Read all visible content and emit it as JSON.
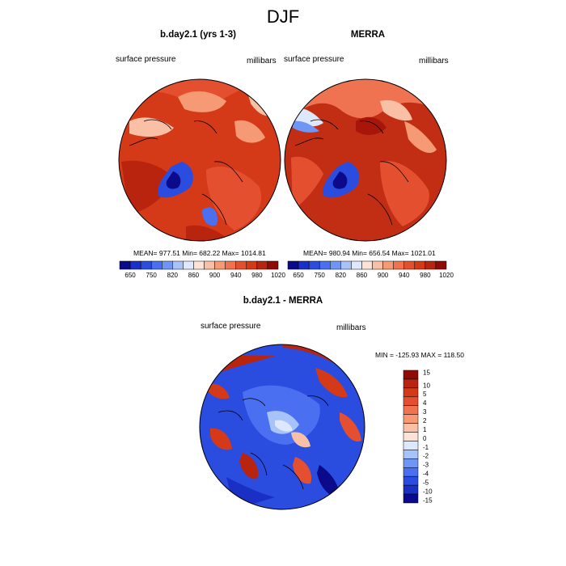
{
  "figure": {
    "title": "DJF"
  },
  "panels": [
    {
      "title": "b.day2.1 (yrs 1-3)",
      "left_label": "surface pressure",
      "right_label": "millibars",
      "stats": "MEAN= 977.51  Min= 682.22  Max= 1014.81",
      "fill_color": "#d43a18"
    },
    {
      "title": "MERRA",
      "left_label": "surface pressure",
      "right_label": "millibars",
      "stats": "MEAN= 980.94  Min= 656.54  Max= 1021.01",
      "fill_color": "#c22e14"
    },
    {
      "title": "b.day2.1 - MERRA",
      "left_label": "surface pressure",
      "right_label": "millibars",
      "stats": "MIN = -125.93 MAX = 118.50",
      "fill_color": "#2a4de0"
    }
  ],
  "colorbar_top": {
    "colors": [
      "#0a0a8a",
      "#1a2fc4",
      "#2a4de0",
      "#4a6ff0",
      "#7096f5",
      "#a8c2fa",
      "#dde8fd",
      "#fbe3d8",
      "#f9c0a6",
      "#f59a74",
      "#ef7350",
      "#e4502f",
      "#d43a18",
      "#b8240d",
      "#8f0c06"
    ],
    "labels": [
      "650",
      "750",
      "820",
      "860",
      "900",
      "940",
      "980",
      "1020"
    ]
  },
  "colorbar_diff": {
    "colors": [
      "#8f0c06",
      "#b8240d",
      "#d43a18",
      "#e4502f",
      "#ef7350",
      "#f59a74",
      "#f9c0a6",
      "#fbe3d8",
      "#dde8fd",
      "#a8c2fa",
      "#7096f5",
      "#4a6ff0",
      "#2a4de0",
      "#1a2fc4",
      "#0a0a8a"
    ],
    "labels": [
      "15",
      "10",
      "5",
      "4",
      "3",
      "2",
      "1",
      "0",
      "-1",
      "-2",
      "-3",
      "-4",
      "-5",
      "-10",
      "-15"
    ]
  }
}
